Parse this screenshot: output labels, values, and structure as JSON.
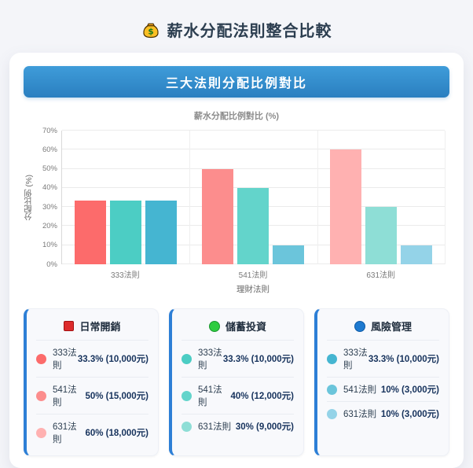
{
  "page": {
    "title": "薪水分配法則整合比較",
    "background": "#f4f5f9",
    "accent_blue": "#2d7fd6"
  },
  "banner": {
    "label": "三大法則分配比例對比"
  },
  "chart_data": {
    "type": "bar",
    "title": "薪水分配比例對比 (%)",
    "xlabel": "理財法則",
    "ylabel": "分配比例 (%)",
    "ylim": [
      0,
      70
    ],
    "yticks": [
      "0%",
      "10%",
      "20%",
      "30%",
      "40%",
      "50%",
      "60%",
      "70%"
    ],
    "grid": true,
    "legend_position": "cards-below",
    "categories": [
      "333法則",
      "541法則",
      "631法則"
    ],
    "series": [
      {
        "name": "日常開銷",
        "values": [
          33.3,
          50,
          60
        ],
        "colors": [
          "#FC6B6B",
          "#FC8D8D",
          "#FFB1B1"
        ]
      },
      {
        "name": "儲蓄投資",
        "values": [
          33.3,
          40,
          30
        ],
        "colors": [
          "#4CCDC4",
          "#63D4CB",
          "#8EDED6"
        ]
      },
      {
        "name": "風險管理",
        "values": [
          33.3,
          10,
          10
        ],
        "colors": [
          "#45B5D1",
          "#6BC5DB",
          "#94D3E8"
        ]
      }
    ]
  },
  "legend_cards": [
    {
      "key": "daily-expenses",
      "title": "日常開銷",
      "icon": {
        "shape": "square",
        "fill": "#dd2c2c",
        "border": "#a31111"
      },
      "rows": [
        {
          "dot": "#FC6B6B",
          "label": "333法則",
          "value": "33.3% (10,000元)"
        },
        {
          "dot": "#FC8D8D",
          "label": "541法則",
          "value": "50% (15,000元)"
        },
        {
          "dot": "#FFB1B1",
          "label": "631法則",
          "value": "60% (18,000元)"
        }
      ]
    },
    {
      "key": "savings-investment",
      "title": "儲蓄投資",
      "icon": {
        "shape": "circle",
        "fill": "#2ecc40",
        "border": "#1d9630"
      },
      "rows": [
        {
          "dot": "#4CCDC4",
          "label": "333法則",
          "value": "33.3% (10,000元)"
        },
        {
          "dot": "#63D4CB",
          "label": "541法則",
          "value": "40% (12,000元)"
        },
        {
          "dot": "#8EDED6",
          "label": "631法則",
          "value": "30% (9,000元)"
        }
      ]
    },
    {
      "key": "risk-management",
      "title": "風險管理",
      "icon": {
        "shape": "circle",
        "fill": "#1e7ad0",
        "border": "#0f5ba6"
      },
      "rows": [
        {
          "dot": "#45B5D1",
          "label": "333法則",
          "value": "33.3% (10,000元)"
        },
        {
          "dot": "#6BC5DB",
          "label": "541法則",
          "value": "10% (3,000元)"
        },
        {
          "dot": "#94D3E8",
          "label": "631法則",
          "value": "10% (3,000元)"
        }
      ]
    }
  ]
}
